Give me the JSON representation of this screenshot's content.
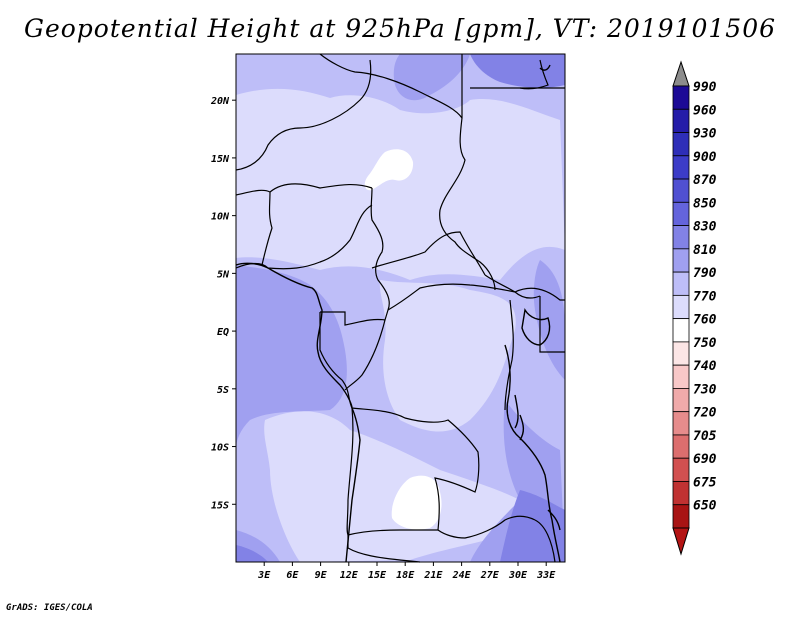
{
  "title": "Geopotential Height at 925hPa [gpm], VT: 2019101506",
  "credit": "GrADS: IGES/COLA",
  "map": {
    "lat_range": [
      -20,
      24
    ],
    "lon_range": [
      0,
      35
    ],
    "lat_ticks": [
      {
        "value": 20,
        "label": "20N"
      },
      {
        "value": 15,
        "label": "15N"
      },
      {
        "value": 10,
        "label": "10N"
      },
      {
        "value": 5,
        "label": "5N"
      },
      {
        "value": 0,
        "label": "EQ"
      },
      {
        "value": -5,
        "label": "5S"
      },
      {
        "value": -10,
        "label": "10S"
      },
      {
        "value": -15,
        "label": "15S"
      }
    ],
    "lon_ticks": [
      {
        "value": 3,
        "label": "3E"
      },
      {
        "value": 6,
        "label": "6E"
      },
      {
        "value": 9,
        "label": "9E"
      },
      {
        "value": 12,
        "label": "12E"
      },
      {
        "value": 15,
        "label": "15E"
      },
      {
        "value": 18,
        "label": "18E"
      },
      {
        "value": 21,
        "label": "21E"
      },
      {
        "value": 24,
        "label": "24E"
      },
      {
        "value": 27,
        "label": "27E"
      },
      {
        "value": 30,
        "label": "30E"
      },
      {
        "value": 33,
        "label": "33E"
      }
    ]
  },
  "colorbar": {
    "levels": [
      {
        "label": "990",
        "color": "#1c0a96"
      },
      {
        "label": "960",
        "color": "#241ca8"
      },
      {
        "label": "930",
        "color": "#2e2eb8"
      },
      {
        "label": "900",
        "color": "#3c3cc8"
      },
      {
        "label": "870",
        "color": "#5050d2"
      },
      {
        "label": "850",
        "color": "#6464dc"
      },
      {
        "label": "830",
        "color": "#8282e6"
      },
      {
        "label": "810",
        "color": "#a0a0f0"
      },
      {
        "label": "790",
        "color": "#bebef8"
      },
      {
        "label": "770",
        "color": "#dcdcfc"
      },
      {
        "label": "760",
        "color": "#ffffff"
      },
      {
        "label": "750",
        "color": "#fce6e6"
      },
      {
        "label": "740",
        "color": "#f8c8c8"
      },
      {
        "label": "730",
        "color": "#f0aaaa"
      },
      {
        "label": "720",
        "color": "#e68c8c"
      },
      {
        "label": "705",
        "color": "#dc6e6e"
      },
      {
        "label": "690",
        "color": "#d25050"
      },
      {
        "label": "675",
        "color": "#c03232"
      },
      {
        "label": "650",
        "color": "#a81414"
      }
    ],
    "top_arrow_color": "#8c8c8c",
    "bottom_arrow_color": "#b41414"
  },
  "field_colors": {
    "c770": "#dcdcfc",
    "c790": "#bebef8",
    "c810": "#a0a0f0",
    "c830": "#8282e6",
    "c760": "#ffffff"
  }
}
